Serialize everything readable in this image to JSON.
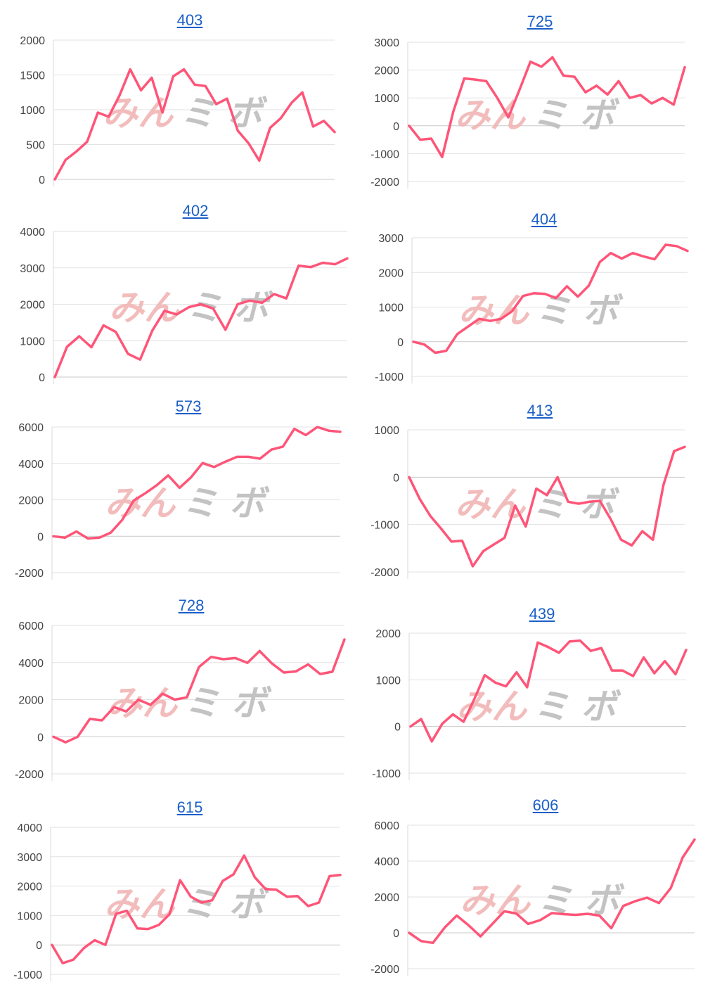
{
  "colors": {
    "line": "#fe5578",
    "grid": "#e2e2e2",
    "link": "#1a5fc8",
    "watermark_pink": "#f2b5b5",
    "watermark_gray": "#bdbdbd"
  },
  "watermark": {
    "text_left": "みん",
    "text_right": "ミ ボ"
  },
  "chart_data": [
    {
      "type": "line",
      "title": "403",
      "yticks": [
        "2000",
        "1500",
        "1000",
        "500",
        "0"
      ],
      "ylim": [
        0,
        2000
      ],
      "values": [
        0,
        280,
        400,
        540,
        960,
        900,
        1200,
        1580,
        1280,
        1460,
        960,
        1480,
        1580,
        1360,
        1340,
        1080,
        1160,
        700,
        520,
        270,
        740,
        880,
        1100,
        1250,
        760,
        840,
        680
      ]
    },
    {
      "type": "line",
      "title": "725",
      "yticks": [
        "3000",
        "2000",
        "1000",
        "0",
        "-1000",
        "-2000"
      ],
      "ylim": [
        -2000,
        3000
      ],
      "values": [
        0,
        -500,
        -460,
        -1120,
        500,
        1700,
        1660,
        1600,
        1000,
        300,
        1280,
        2300,
        2120,
        2460,
        1800,
        1760,
        1200,
        1440,
        1120,
        1600,
        1000,
        1100,
        800,
        1000,
        760,
        2100
      ]
    },
    {
      "type": "line",
      "title": "402",
      "yticks": [
        "4000",
        "3000",
        "2000",
        "1000",
        "0"
      ],
      "ylim": [
        0,
        4000
      ],
      "values": [
        0,
        830,
        1120,
        820,
        1420,
        1240,
        640,
        480,
        1280,
        1820,
        1720,
        1920,
        2000,
        1880,
        1300,
        2000,
        2100,
        2040,
        2280,
        2160,
        3060,
        3020,
        3140,
        3100,
        3260
      ]
    },
    {
      "type": "line",
      "title": "404",
      "yticks": [
        "3000",
        "2000",
        "1000",
        "0",
        "-1000"
      ],
      "ylim": [
        -1000,
        3000
      ],
      "values": [
        0,
        -80,
        -320,
        -260,
        220,
        440,
        660,
        600,
        660,
        880,
        1320,
        1400,
        1380,
        1260,
        1600,
        1300,
        1620,
        2300,
        2560,
        2400,
        2560,
        2460,
        2380,
        2800,
        2760,
        2620
      ]
    },
    {
      "type": "line",
      "title": "573",
      "yticks": [
        "6000",
        "4000",
        "2000",
        "0",
        "-2000"
      ],
      "ylim": [
        -2000,
        6000
      ],
      "values": [
        0,
        -80,
        260,
        -120,
        -80,
        200,
        900,
        1960,
        2360,
        2800,
        3340,
        2660,
        3240,
        4020,
        3800,
        4100,
        4360,
        4360,
        4260,
        4760,
        4920,
        5900,
        5560,
        6000,
        5800,
        5740
      ]
    },
    {
      "type": "line",
      "title": "413",
      "yticks": [
        "1000",
        "0",
        "-1000",
        "-2000"
      ],
      "ylim": [
        -2000,
        1000
      ],
      "values": [
        0,
        -460,
        -820,
        -1080,
        -1360,
        -1340,
        -1880,
        -1560,
        -1420,
        -1280,
        -600,
        -1040,
        -240,
        -380,
        0,
        -520,
        -560,
        -520,
        -500,
        -880,
        -1320,
        -1440,
        -1140,
        -1320,
        -160,
        550,
        640
      ]
    },
    {
      "type": "line",
      "title": "728",
      "yticks": [
        "6000",
        "4000",
        "2000",
        "0",
        "-2000"
      ],
      "ylim": [
        -2000,
        6000
      ],
      "values": [
        0,
        -300,
        0,
        960,
        880,
        1600,
        1360,
        2000,
        1720,
        2320,
        2000,
        2120,
        3760,
        4300,
        4180,
        4240,
        3980,
        4620,
        3960,
        3460,
        3520,
        3900,
        3380,
        3500,
        5240
      ]
    },
    {
      "type": "line",
      "title": "439",
      "yticks": [
        "2000",
        "1000",
        "0",
        "-1000"
      ],
      "ylim": [
        -1000,
        2000
      ],
      "values": [
        0,
        160,
        -320,
        60,
        260,
        100,
        580,
        1100,
        940,
        860,
        1160,
        840,
        1800,
        1700,
        1580,
        1820,
        1840,
        1620,
        1680,
        1200,
        1200,
        1080,
        1480,
        1140,
        1400,
        1120,
        1640
      ]
    },
    {
      "type": "line",
      "title": "615",
      "yticks": [
        "4000",
        "3000",
        "2000",
        "1000",
        "0",
        "-1000"
      ],
      "ylim": [
        -1000,
        4000
      ],
      "values": [
        0,
        -620,
        -500,
        -100,
        160,
        0,
        1060,
        1160,
        560,
        540,
        680,
        1040,
        2200,
        1640,
        1440,
        1520,
        2180,
        2400,
        3040,
        2300,
        1900,
        1880,
        1640,
        1660,
        1320,
        1440,
        2340,
        2380
      ]
    },
    {
      "type": "line",
      "title": "606",
      "yticks": [
        "6000",
        "4000",
        "2000",
        "0",
        "-2000"
      ],
      "ylim": [
        -2000,
        6000
      ],
      "values": [
        0,
        -460,
        -560,
        300,
        960,
        420,
        -200,
        500,
        1200,
        1080,
        500,
        700,
        1100,
        1040,
        1000,
        1060,
        960,
        260,
        1500,
        1760,
        1960,
        1660,
        2500,
        4200,
        5200
      ]
    }
  ]
}
